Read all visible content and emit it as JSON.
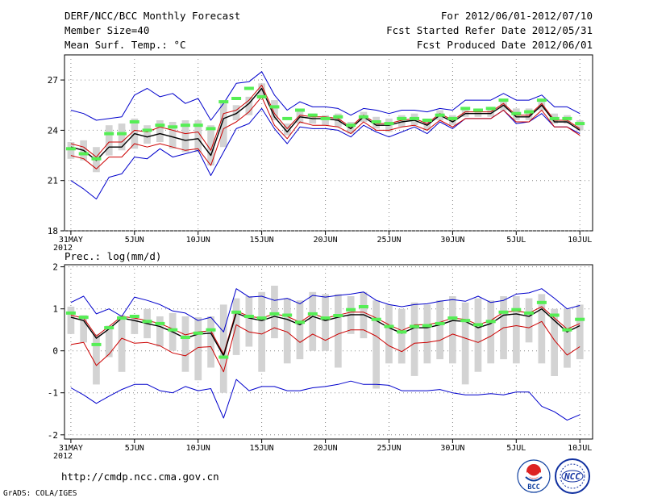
{
  "header": {
    "title": "DERF/NCC/BCC Monthly Forecast",
    "member_size": "Member Size=40",
    "variable": "Mean Surf. Temp.: °C",
    "period": "For 2012/06/01-2012/07/10",
    "started": "Fcst Started Refer Date 2012/05/31",
    "produced": "Fcst Produced Date 2012/06/01"
  },
  "footer": {
    "url": "http://cmdp.ncc.cma.gov.cn",
    "grads": "GrADS: COLA/IGES",
    "logo_bcc": "BCC",
    "logo_ncc": "NCC"
  },
  "colors": {
    "max_min": "#0000cc",
    "spread": "#cc0000",
    "mean": "#000000",
    "box": "#d3d3d3",
    "obs": "#55ee55"
  },
  "chart_data": [
    {
      "type": "line",
      "title": "Mean Surf. Temp.: °C",
      "xlabel": "",
      "ylabel": "",
      "x_day_range": [
        1,
        41
      ],
      "ylim": [
        18,
        28.5
      ],
      "y_ticks": [
        18,
        21,
        24,
        27
      ],
      "x_tick_labels": [
        {
          "day": 1,
          "label": "31MAY",
          "sub": "2012"
        },
        {
          "day": 6,
          "label": "5JUN"
        },
        {
          "day": 11,
          "label": "10JUN"
        },
        {
          "day": 16,
          "label": "15JUN"
        },
        {
          "day": 21,
          "label": "20JUN"
        },
        {
          "day": 26,
          "label": "25JUN"
        },
        {
          "day": 31,
          "label": "30JUN"
        },
        {
          "day": 36,
          "label": "5JUL"
        },
        {
          "day": 41,
          "label": "10JUL"
        }
      ],
      "grid": true,
      "series": [
        {
          "name": "max",
          "role": "max",
          "values": [
            25.2,
            25.0,
            24.6,
            24.7,
            24.8,
            26.1,
            26.5,
            26.0,
            26.2,
            25.6,
            25.9,
            24.6,
            25.6,
            26.8,
            26.9,
            27.5,
            26.1,
            25.2,
            25.7,
            25.4,
            25.4,
            25.3,
            24.9,
            25.3,
            25.2,
            25.0,
            25.2,
            25.2,
            25.1,
            25.3,
            25.2,
            25.8,
            25.8,
            25.8,
            26.2,
            25.8,
            25.8,
            26.1,
            25.4,
            25.4,
            25.0
          ]
        },
        {
          "name": "p75",
          "role": "upper",
          "values": [
            23.2,
            23.0,
            22.4,
            23.3,
            23.3,
            24.0,
            23.9,
            24.2,
            24.0,
            23.8,
            23.9,
            22.8,
            25.0,
            25.2,
            25.8,
            26.7,
            25.0,
            24.1,
            24.9,
            24.8,
            24.8,
            24.7,
            24.2,
            24.9,
            24.4,
            24.4,
            24.6,
            24.7,
            24.4,
            25.0,
            24.6,
            25.1,
            25.1,
            25.1,
            25.6,
            24.9,
            24.9,
            25.6,
            24.6,
            24.6,
            24.1
          ]
        },
        {
          "name": "ensemble mean",
          "role": "mean",
          "values": [
            23.0,
            22.8,
            22.2,
            23.0,
            23.0,
            23.8,
            23.6,
            23.8,
            23.6,
            23.4,
            23.5,
            22.5,
            24.7,
            25.0,
            25.6,
            26.5,
            24.8,
            23.9,
            24.8,
            24.7,
            24.7,
            24.6,
            24.1,
            24.8,
            24.3,
            24.3,
            24.5,
            24.6,
            24.3,
            24.9,
            24.5,
            25.0,
            25.0,
            25.0,
            25.5,
            24.8,
            24.8,
            25.5,
            24.5,
            24.5,
            24.0
          ]
        },
        {
          "name": "p25",
          "role": "lower",
          "values": [
            22.5,
            22.3,
            21.7,
            22.4,
            22.4,
            23.2,
            23.0,
            23.2,
            23.0,
            22.8,
            22.9,
            21.9,
            24.1,
            24.5,
            25.1,
            26.0,
            24.3,
            23.5,
            24.5,
            24.3,
            24.3,
            24.2,
            23.8,
            24.5,
            24.0,
            24.0,
            24.2,
            24.3,
            24.0,
            24.6,
            24.2,
            24.7,
            24.7,
            24.7,
            25.2,
            24.5,
            24.5,
            25.2,
            24.2,
            24.2,
            23.7
          ]
        },
        {
          "name": "min",
          "role": "min",
          "values": [
            21.0,
            20.5,
            19.9,
            21.2,
            21.4,
            22.4,
            22.3,
            22.9,
            22.4,
            22.6,
            22.8,
            21.3,
            22.7,
            24.1,
            24.4,
            25.3,
            24.1,
            23.2,
            24.2,
            24.1,
            24.1,
            24.0,
            23.6,
            24.3,
            23.9,
            23.6,
            23.9,
            24.2,
            23.8,
            24.5,
            24.1,
            24.7,
            24.7,
            24.7,
            25.2,
            24.4,
            24.5,
            25.0,
            24.2,
            24.2,
            23.8
          ]
        },
        {
          "name": "box top",
          "role": "box_hi",
          "values": [
            23.3,
            23.4,
            23.0,
            24.3,
            24.4,
            24.7,
            24.3,
            24.6,
            24.5,
            24.6,
            24.6,
            24.3,
            25.6,
            25.5,
            26.0,
            26.8,
            25.8,
            24.4,
            25.1,
            25.0,
            24.9,
            25.0,
            24.5,
            25.1,
            24.8,
            24.7,
            24.9,
            25.0,
            24.7,
            25.2,
            24.9,
            25.2,
            25.3,
            25.3,
            25.8,
            25.3,
            25.3,
            25.8,
            25.0,
            24.9,
            24.6
          ]
        },
        {
          "name": "box bottom",
          "role": "box_lo",
          "values": [
            22.3,
            22.2,
            21.5,
            22.5,
            22.8,
            22.9,
            23.2,
            23.3,
            22.9,
            22.7,
            22.7,
            21.9,
            23.0,
            24.6,
            24.9,
            25.9,
            24.6,
            23.7,
            24.4,
            24.4,
            24.3,
            24.2,
            23.8,
            24.5,
            24.1,
            23.9,
            24.2,
            24.3,
            24.0,
            24.6,
            24.3,
            24.8,
            24.8,
            24.8,
            25.2,
            24.6,
            24.6,
            25.2,
            24.4,
            24.4,
            24.0
          ]
        },
        {
          "name": "green marks",
          "role": "obs",
          "values": [
            22.9,
            22.6,
            22.3,
            23.8,
            23.8,
            24.5,
            24.0,
            24.3,
            24.2,
            24.3,
            24.3,
            24.1,
            25.7,
            25.9,
            26.5,
            26.0,
            25.4,
            24.7,
            25.2,
            24.9,
            24.7,
            24.8,
            24.3,
            24.8,
            24.5,
            24.4,
            24.7,
            24.7,
            24.6,
            24.9,
            24.7,
            25.3,
            25.2,
            25.3,
            25.8,
            25.0,
            25.1,
            25.8,
            24.7,
            24.7,
            24.4
          ]
        }
      ]
    },
    {
      "type": "line",
      "title": "Prec.: log(mm/d)",
      "xlabel": "",
      "ylabel": "",
      "x_day_range": [
        1,
        41
      ],
      "ylim": [
        -2.1,
        2.05
      ],
      "y_ticks": [
        -2,
        -1,
        0,
        1,
        2
      ],
      "x_tick_labels": [
        {
          "day": 1,
          "label": "31MAY",
          "sub": "2012"
        },
        {
          "day": 6,
          "label": "5JUN"
        },
        {
          "day": 11,
          "label": "10JUN"
        },
        {
          "day": 16,
          "label": "15JUN"
        },
        {
          "day": 21,
          "label": "20JUN"
        },
        {
          "day": 26,
          "label": "25JUN"
        },
        {
          "day": 31,
          "label": "30JUN"
        },
        {
          "day": 36,
          "label": "5JUL"
        },
        {
          "day": 41,
          "label": "10JUL"
        }
      ],
      "grid": true,
      "series": [
        {
          "name": "max",
          "role": "max",
          "values": [
            1.15,
            1.3,
            0.88,
            1.0,
            0.82,
            1.28,
            1.2,
            1.1,
            0.95,
            0.9,
            0.72,
            0.8,
            0.45,
            1.48,
            1.28,
            1.3,
            1.2,
            1.25,
            1.12,
            1.32,
            1.28,
            1.32,
            1.35,
            1.4,
            1.2,
            1.1,
            1.05,
            1.1,
            1.12,
            1.18,
            1.22,
            1.18,
            1.3,
            1.15,
            1.2,
            1.35,
            1.38,
            1.48,
            1.25,
            1.0,
            1.08
          ]
        },
        {
          "name": "p75",
          "role": "upper",
          "values": [
            0.85,
            0.78,
            0.35,
            0.58,
            0.82,
            0.78,
            0.72,
            0.65,
            0.52,
            0.38,
            0.45,
            0.48,
            -0.08,
            0.95,
            0.82,
            0.78,
            0.88,
            0.82,
            0.68,
            0.88,
            0.78,
            0.85,
            0.92,
            0.92,
            0.78,
            0.62,
            0.48,
            0.62,
            0.62,
            0.68,
            0.78,
            0.75,
            0.62,
            0.72,
            0.92,
            0.95,
            0.9,
            1.05,
            0.78,
            0.52,
            0.65
          ]
        },
        {
          "name": "ensemble mean",
          "role": "mean",
          "values": [
            0.8,
            0.72,
            0.3,
            0.52,
            0.78,
            0.72,
            0.65,
            0.58,
            0.45,
            0.3,
            0.4,
            0.42,
            -0.12,
            0.9,
            0.78,
            0.72,
            0.82,
            0.75,
            0.62,
            0.82,
            0.72,
            0.8,
            0.86,
            0.86,
            0.72,
            0.55,
            0.42,
            0.55,
            0.55,
            0.62,
            0.72,
            0.7,
            0.55,
            0.65,
            0.85,
            0.88,
            0.82,
            1.0,
            0.72,
            0.45,
            0.6
          ]
        },
        {
          "name": "p25",
          "role": "lower",
          "values": [
            0.15,
            0.2,
            -0.35,
            -0.08,
            0.3,
            0.18,
            0.2,
            0.12,
            -0.05,
            -0.12,
            0.08,
            0.1,
            -0.5,
            0.62,
            0.45,
            0.4,
            0.55,
            0.45,
            0.2,
            0.4,
            0.25,
            0.4,
            0.5,
            0.5,
            0.35,
            0.12,
            -0.02,
            0.18,
            0.2,
            0.25,
            0.4,
            0.3,
            0.2,
            0.35,
            0.55,
            0.6,
            0.55,
            0.7,
            0.25,
            -0.1,
            0.1
          ]
        },
        {
          "name": "min",
          "role": "min",
          "values": [
            -0.88,
            -1.05,
            -1.25,
            -1.08,
            -0.92,
            -0.8,
            -0.8,
            -0.95,
            -1.0,
            -0.85,
            -0.95,
            -0.9,
            -1.6,
            -0.68,
            -0.95,
            -0.85,
            -0.85,
            -0.95,
            -0.95,
            -0.88,
            -0.85,
            -0.8,
            -0.72,
            -0.8,
            -0.8,
            -0.82,
            -0.95,
            -0.95,
            -0.95,
            -0.92,
            -1.0,
            -1.05,
            -1.05,
            -1.02,
            -1.05,
            -0.98,
            -0.98,
            -1.32,
            -1.45,
            -1.65,
            -1.52
          ]
        },
        {
          "name": "box top",
          "role": "box_hi",
          "values": [
            1.05,
            0.85,
            0.4,
            0.6,
            0.85,
            0.85,
            1.0,
            0.82,
            0.9,
            0.82,
            0.8,
            0.82,
            1.1,
            1.25,
            1.3,
            1.4,
            1.55,
            1.25,
            1.2,
            1.4,
            1.35,
            1.35,
            1.3,
            1.4,
            1.2,
            1.1,
            1.0,
            1.15,
            1.1,
            1.2,
            1.3,
            1.15,
            1.25,
            1.2,
            1.3,
            1.3,
            1.25,
            1.35,
            1.0,
            1.0,
            1.1
          ]
        },
        {
          "name": "box bottom",
          "role": "box_lo",
          "values": [
            0.4,
            0.2,
            -0.8,
            -0.15,
            -0.5,
            0.4,
            0.3,
            0.1,
            0.0,
            -0.5,
            -0.7,
            -0.4,
            -1.0,
            -0.1,
            0.1,
            -0.5,
            0.3,
            -0.3,
            -0.2,
            0.0,
            0.0,
            -0.4,
            0.4,
            0.3,
            -0.9,
            -0.3,
            -0.3,
            -0.6,
            -0.3,
            -0.2,
            -0.3,
            -0.8,
            -0.5,
            -0.3,
            -0.2,
            -0.3,
            0.2,
            -0.3,
            -0.6,
            -0.4,
            -0.2
          ]
        },
        {
          "name": "green marks",
          "role": "obs",
          "values": [
            0.9,
            0.8,
            0.15,
            0.55,
            0.78,
            0.82,
            0.7,
            0.65,
            0.5,
            0.32,
            0.42,
            0.5,
            -0.15,
            0.92,
            0.82,
            0.78,
            0.88,
            0.85,
            0.68,
            0.88,
            0.78,
            0.84,
            0.98,
            1.05,
            0.75,
            0.58,
            0.45,
            0.58,
            0.6,
            0.65,
            0.78,
            0.72,
            0.62,
            0.7,
            0.92,
            0.98,
            0.9,
            1.15,
            0.85,
            0.5,
            0.75
          ]
        }
      ]
    }
  ]
}
